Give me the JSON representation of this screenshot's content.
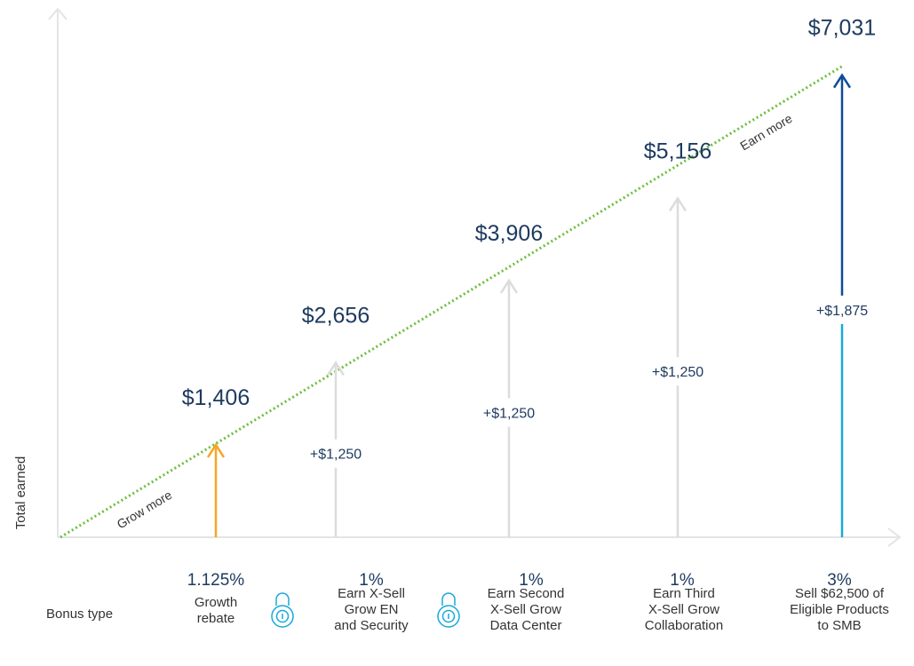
{
  "chart_data": {
    "type": "arrow-steps",
    "y_label": "Total earned",
    "x_label": "Bonus type",
    "annotations": [
      "Grow more",
      "Earn more"
    ],
    "ylim": [
      0,
      7500
    ],
    "categories": [
      [
        "Growth",
        "rebate"
      ],
      [
        "Earn  X-Sell",
        "Grow EN",
        "and Security"
      ],
      [
        "Earn Second",
        "X-Sell Grow",
        "Data Center"
      ],
      [
        "Earn Third",
        "X-Sell Grow",
        "Collaboration"
      ],
      [
        "Sell $62,500 of",
        "Eligible Products",
        "to SMB"
      ]
    ],
    "rates": [
      "1.125%",
      "1%",
      "1%",
      "1%",
      "3%"
    ],
    "locked": [
      false,
      true,
      true,
      false,
      false
    ],
    "totals": {
      "values": [
        1406,
        2656,
        3906,
        5156,
        7031
      ],
      "value_labels": [
        "$1,406",
        "$2,656",
        "$3,906",
        "$5,156",
        "$7,031"
      ]
    },
    "increments": {
      "values": [
        null,
        1250,
        1250,
        1250,
        1875
      ],
      "value_labels": [
        null,
        "+$1,250",
        "+$1,250",
        "+$1,250",
        "+$1,875"
      ]
    },
    "colors": [
      "#f5a623",
      "#dcdcdc",
      "#dcdcdc",
      "#dcdcdc",
      "#0d4c9a"
    ],
    "base_color": "#18a9d8",
    "trend_color": "#6cbf3c"
  }
}
